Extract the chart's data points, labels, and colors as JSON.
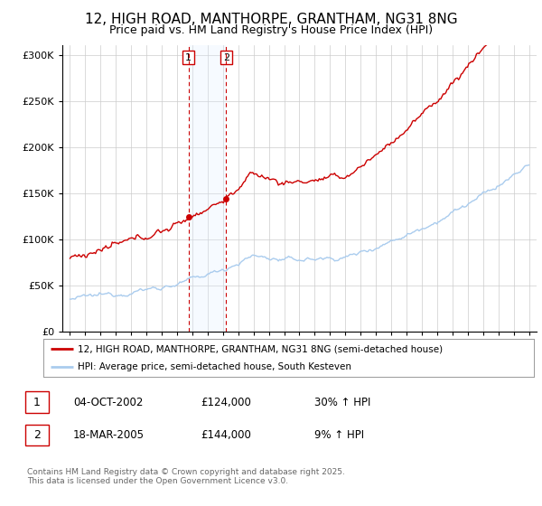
{
  "title": "12, HIGH ROAD, MANTHORPE, GRANTHAM, NG31 8NG",
  "subtitle": "Price paid vs. HM Land Registry's House Price Index (HPI)",
  "legend_line1": "12, HIGH ROAD, MANTHORPE, GRANTHAM, NG31 8NG (semi-detached house)",
  "legend_line2": "HPI: Average price, semi-detached house, South Kesteven",
  "footer": "Contains HM Land Registry data © Crown copyright and database right 2025.\nThis data is licensed under the Open Government Licence v3.0.",
  "transaction1_date": "04-OCT-2002",
  "transaction1_price": "£124,000",
  "transaction1_hpi": "30% ↑ HPI",
  "transaction2_date": "18-MAR-2005",
  "transaction2_price": "£144,000",
  "transaction2_hpi": "9% ↑ HPI",
  "sale1_x": 2002.75,
  "sale1_y": 124000,
  "sale2_x": 2005.21,
  "sale2_y": 144000,
  "shade1_x": 2002.75,
  "shade2_x": 2005.21,
  "ylim": [
    0,
    310000
  ],
  "xlim": [
    1994.5,
    2025.5
  ],
  "price_line_color": "#cc0000",
  "hpi_line_color": "#aaccee",
  "sale_dot_color": "#cc0000",
  "shade_color": "#ddeeff",
  "grid_color": "#cccccc",
  "background_color": "#ffffff",
  "title_fontsize": 11,
  "subtitle_fontsize": 9,
  "ytick_labels": [
    "£0",
    "£50K",
    "£100K",
    "£150K",
    "£200K",
    "£250K",
    "£300K"
  ],
  "ytick_values": [
    0,
    50000,
    100000,
    150000,
    200000,
    250000,
    300000
  ]
}
